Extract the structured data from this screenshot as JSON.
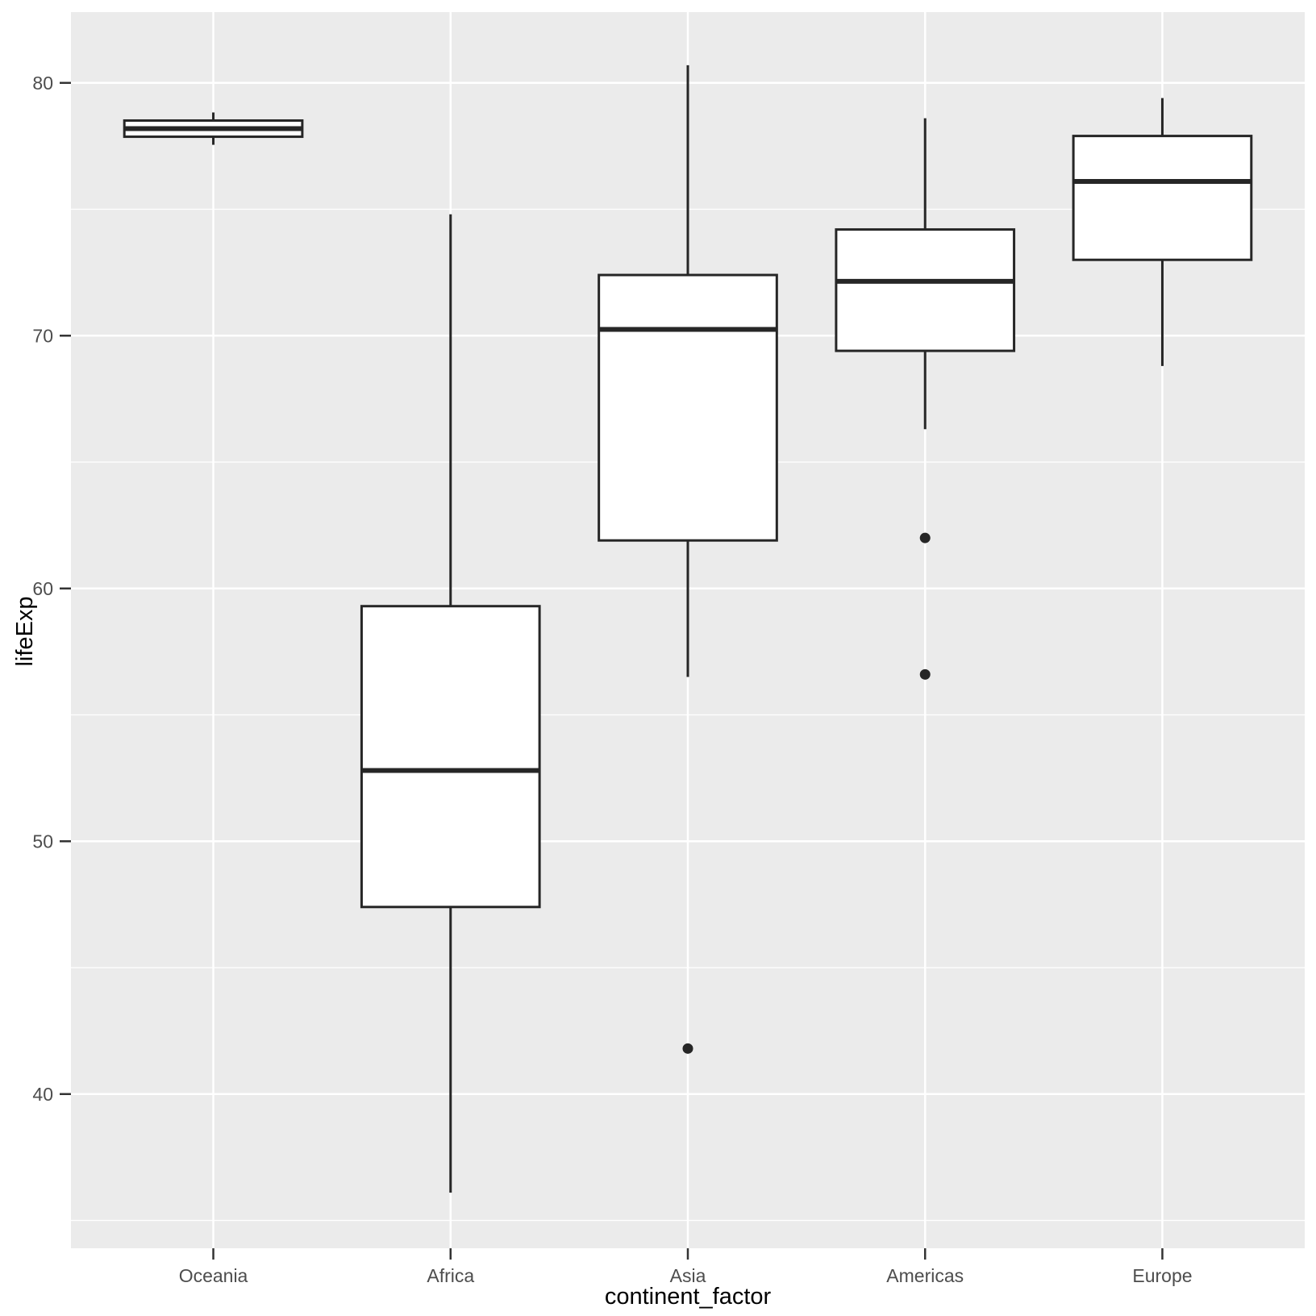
{
  "chart_data": {
    "type": "boxplot",
    "title": "",
    "xlabel": "continent_factor",
    "ylabel": "lifeExp",
    "categories": [
      "Oceania",
      "Africa",
      "Asia",
      "Americas",
      "Europe"
    ],
    "ylim": [
      33.9,
      82.8
    ],
    "y_major_ticks": [
      40,
      50,
      60,
      70,
      80
    ],
    "y_minor_ticks": [
      35,
      45,
      55,
      65,
      75
    ],
    "grid": true,
    "legend": "none",
    "series": [
      {
        "category": "Oceania",
        "whisker_low": 77.55,
        "q1": 77.87,
        "median": 78.19,
        "q3": 78.51,
        "whisker_high": 78.83,
        "outliers": []
      },
      {
        "category": "Africa",
        "whisker_low": 36.1,
        "q1": 47.4,
        "median": 52.8,
        "q3": 59.3,
        "whisker_high": 74.8,
        "outliers": []
      },
      {
        "category": "Asia",
        "whisker_low": 56.5,
        "q1": 61.9,
        "median": 70.25,
        "q3": 72.4,
        "whisker_high": 80.7,
        "outliers": [
          41.8
        ]
      },
      {
        "category": "Americas",
        "whisker_low": 66.3,
        "q1": 69.4,
        "median": 72.15,
        "q3": 74.2,
        "whisker_high": 78.6,
        "outliers": [
          62.0,
          56.6
        ]
      },
      {
        "category": "Europe",
        "whisker_low": 68.8,
        "q1": 73.0,
        "median": 76.1,
        "q3": 77.9,
        "whisker_high": 79.4,
        "outliers": []
      }
    ],
    "colors": {
      "panel_background": "#EBEBEB",
      "grid": "#FFFFFF",
      "box_fill": "#FFFFFF",
      "box_stroke": "#262626",
      "outlier": "#262626",
      "tick_mark": "#333333",
      "tick_label": "#4D4D4D",
      "axis_title": "#000000"
    }
  }
}
